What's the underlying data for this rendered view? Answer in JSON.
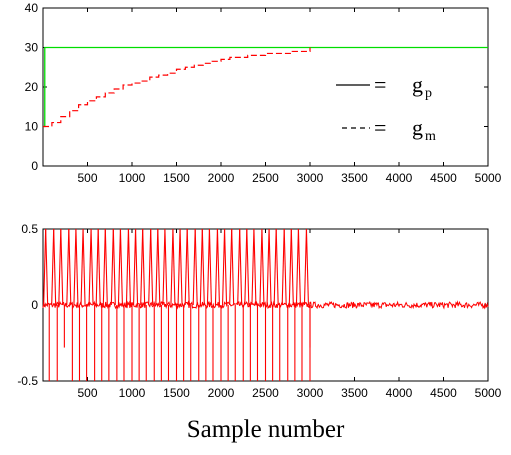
{
  "chart_data": [
    {
      "type": "line",
      "title": "",
      "xlabel": "",
      "ylabel": "",
      "xlim": [
        0,
        5000
      ],
      "ylim": [
        0,
        40
      ],
      "xticks": [
        500,
        1000,
        1500,
        2000,
        2500,
        3000,
        3500,
        4000,
        4500,
        5000
      ],
      "yticks": [
        0,
        10,
        20,
        30,
        40
      ],
      "grid": false,
      "legend": {
        "placement": "right",
        "entries": [
          {
            "line": "solid",
            "symbol": "=",
            "base": "g",
            "sub": "p"
          },
          {
            "line": "dashed",
            "symbol": "=",
            "base": "g",
            "sub": "m"
          }
        ]
      },
      "series": [
        {
          "color": "#00dd00",
          "style": "solid",
          "x": [
            0,
            20,
            20,
            5000
          ],
          "y": [
            10,
            10,
            30,
            30
          ]
        },
        {
          "color": "#ff0000",
          "style": "dashed-step",
          "x": [
            0,
            100,
            200,
            300,
            400,
            500,
            600,
            700,
            800,
            900,
            1000,
            1100,
            1200,
            1300,
            1400,
            1500,
            1600,
            1700,
            1800,
            1900,
            2000,
            2100,
            2200,
            2300,
            2400,
            2500,
            2600,
            2700,
            2800,
            2900,
            3000,
            3000
          ],
          "y": [
            10,
            11,
            12.5,
            14,
            15.5,
            16.5,
            17.5,
            18.5,
            19.5,
            20.5,
            21,
            21.5,
            22.5,
            23,
            23.5,
            24.5,
            25,
            25.5,
            26,
            26.5,
            27,
            27.5,
            27.5,
            28,
            28,
            28.5,
            28.5,
            28.5,
            29,
            29,
            29,
            30
          ]
        }
      ]
    },
    {
      "type": "line",
      "title": "",
      "xlabel": "Sample number",
      "ylabel": "",
      "xlim": [
        0,
        5000
      ],
      "ylim": [
        -0.5,
        0.5
      ],
      "xticks": [
        500,
        1000,
        1500,
        2000,
        2500,
        3000,
        3500,
        4000,
        4500,
        5000
      ],
      "yticks": [
        -0.5,
        0,
        0.5
      ],
      "ytick_labels": [
        "-0.5",
        "0",
        "0.5"
      ],
      "grid": false,
      "series": [
        {
          "color": "#ff0000",
          "style": "solid",
          "baseline_noise": 0.02,
          "spike_x": [
            30,
            120,
            200,
            290,
            370,
            450,
            540,
            620,
            700,
            790,
            870,
            960,
            1040,
            1120,
            1210,
            1290,
            1370,
            1460,
            1540,
            1620,
            1710,
            1790,
            1870,
            1960,
            2040,
            2120,
            2210,
            2290,
            2370,
            2460,
            2540,
            2620,
            2710,
            2790,
            2870,
            2960
          ],
          "spike_pos": [
            0.5,
            0.5,
            0.5,
            0.5,
            0.5,
            0.5,
            0.5,
            0.5,
            0.5,
            0.5,
            0.5,
            0.5,
            0.5,
            0.5,
            0.5,
            0.5,
            0.5,
            0.5,
            0.5,
            0.5,
            0.5,
            0.5,
            0.5,
            0.5,
            0.5,
            0.5,
            0.5,
            0.5,
            0.5,
            0.5,
            0.5,
            0.5,
            0.5,
            0.5,
            0.5,
            0.5
          ],
          "spike_neg": [
            -0.5,
            -0.5,
            -0.28,
            -0.5,
            -0.5,
            -0.5,
            -0.5,
            -0.5,
            -0.5,
            -0.5,
            -0.5,
            -0.5,
            -0.5,
            -0.5,
            -0.5,
            -0.5,
            -0.5,
            -0.5,
            -0.5,
            -0.5,
            -0.5,
            -0.5,
            -0.5,
            -0.5,
            -0.5,
            -0.5,
            -0.5,
            -0.5,
            -0.5,
            -0.5,
            -0.5,
            -0.5,
            -0.5,
            -0.5,
            -0.5,
            -0.5
          ],
          "final_step": {
            "x": 3000,
            "y": -0.28
          }
        }
      ]
    }
  ]
}
